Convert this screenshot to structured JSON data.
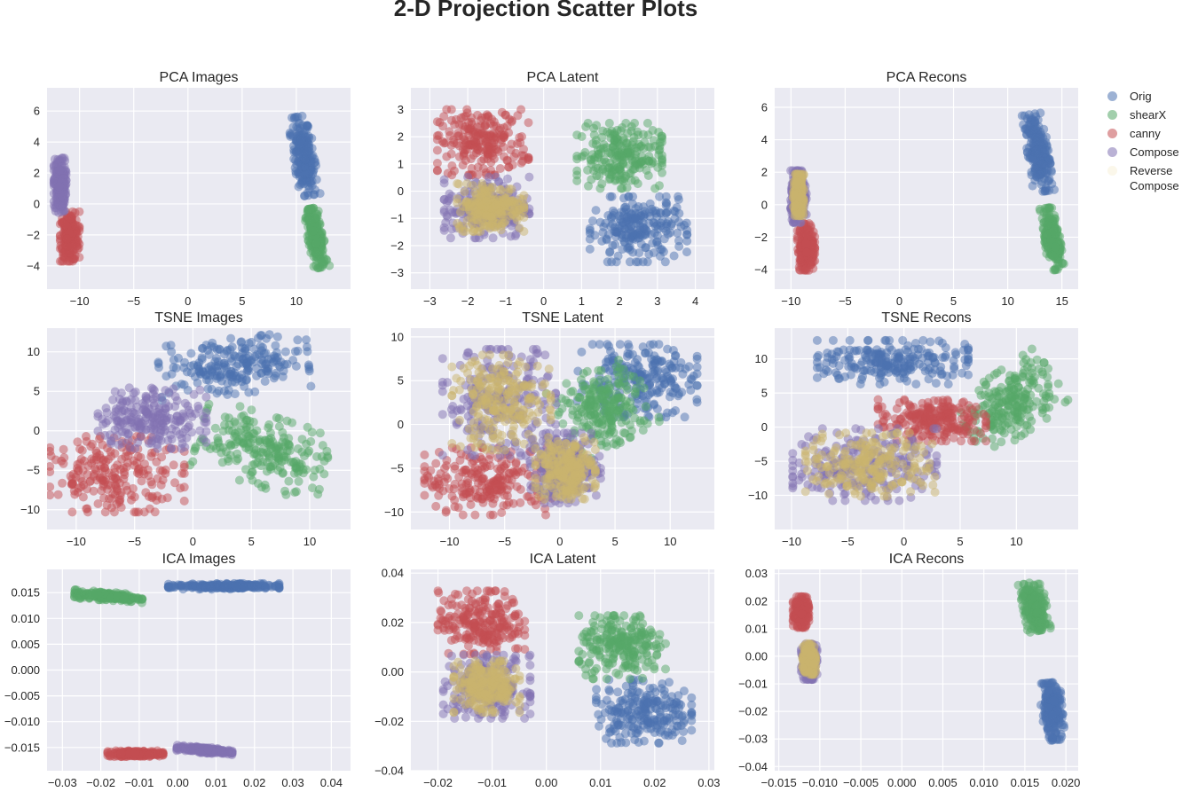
{
  "figure_title": "2-D Projection Scatter Plots",
  "legend": [
    {
      "label": "Orig",
      "color": "#4c72b0"
    },
    {
      "label": "shearX",
      "color": "#55a868"
    },
    {
      "label": "canny",
      "color": "#c44e52"
    },
    {
      "label": "Compose",
      "color": "#8172b2"
    },
    {
      "label": "Reverse\nCompose",
      "color": "#f7f1d8"
    }
  ],
  "chart_data": [
    {
      "type": "scatter",
      "title": "PCA Images",
      "xlim": [
        -13,
        15
      ],
      "ylim": [
        -5.5,
        7.5
      ],
      "xticks": [
        -10,
        -5,
        0,
        5,
        10
      ],
      "xticklabels": [
        "−10",
        "−5",
        "0",
        "5",
        "10"
      ],
      "yticks": [
        -4,
        -2,
        0,
        2,
        4,
        6
      ],
      "yticklabels": [
        "−4",
        "−2",
        "0",
        "2",
        "4",
        "6"
      ],
      "clusters": [
        {
          "series": "Orig",
          "center": [
            10.7,
            3.1
          ],
          "spread": [
            0.6,
            1.6
          ],
          "angle": -0.15
        },
        {
          "series": "shearX",
          "center": [
            11.8,
            -2.2
          ],
          "spread": [
            0.45,
            1.2
          ],
          "angle": -0.2
        },
        {
          "series": "canny",
          "center": [
            -10.9,
            -2.1
          ],
          "spread": [
            0.55,
            1.0
          ],
          "angle": 0
        },
        {
          "series": "Compose",
          "center": [
            -11.8,
            1.2
          ],
          "spread": [
            0.35,
            1.1
          ],
          "angle": 0
        }
      ]
    },
    {
      "type": "scatter",
      "title": "PCA Latent",
      "xlim": [
        -3.5,
        4.5
      ],
      "ylim": [
        -3.6,
        3.8
      ],
      "xticks": [
        -3,
        -2,
        -1,
        0,
        1,
        2,
        3,
        4
      ],
      "xticklabels": [
        "−3",
        "−2",
        "−1",
        "0",
        "1",
        "2",
        "3",
        "4"
      ],
      "yticks": [
        -3,
        -2,
        -1,
        0,
        1,
        2,
        3
      ],
      "yticklabels": [
        "−3",
        "−2",
        "−1",
        "0",
        "1",
        "2",
        "3"
      ],
      "clusters": [
        {
          "series": "canny",
          "center": [
            -1.6,
            1.8
          ],
          "spread": [
            0.75,
            0.75
          ],
          "angle": 0
        },
        {
          "series": "Orig",
          "center": [
            2.5,
            -1.4
          ],
          "spread": [
            0.8,
            0.75
          ],
          "angle": 0
        },
        {
          "series": "shearX",
          "center": [
            2.0,
            1.3
          ],
          "spread": [
            0.7,
            0.75
          ],
          "angle": 0
        },
        {
          "series": "Compose",
          "center": [
            -1.5,
            -0.6
          ],
          "spread": [
            0.7,
            0.7
          ],
          "angle": 0
        },
        {
          "series": "Reverse Compose",
          "center": [
            -1.4,
            -0.6
          ],
          "spread": [
            0.55,
            0.55
          ],
          "angle": 0
        }
      ]
    },
    {
      "type": "scatter",
      "title": "PCA Recons",
      "xlim": [
        -11.5,
        16.5
      ],
      "ylim": [
        -5.2,
        7.2
      ],
      "xticks": [
        -10,
        -5,
        0,
        5,
        10,
        15
      ],
      "xticklabels": [
        "−10",
        "−5",
        "0",
        "5",
        "10",
        "15"
      ],
      "yticks": [
        -4,
        -2,
        0,
        2,
        4,
        6
      ],
      "yticklabels": [
        "−4",
        "−2",
        "0",
        "2",
        "4",
        "6"
      ],
      "clusters": [
        {
          "series": "Orig",
          "center": [
            12.8,
            3.2
          ],
          "spread": [
            0.6,
            1.5
          ],
          "angle": -0.15
        },
        {
          "series": "shearX",
          "center": [
            14.1,
            -2.1
          ],
          "spread": [
            0.45,
            1.2
          ],
          "angle": -0.15
        },
        {
          "series": "canny",
          "center": [
            -8.6,
            -2.6
          ],
          "spread": [
            0.5,
            0.9
          ],
          "angle": 0
        },
        {
          "series": "Compose",
          "center": [
            -9.3,
            0.5
          ],
          "spread": [
            0.45,
            1.0
          ],
          "angle": 0
        },
        {
          "series": "Reverse Compose",
          "center": [
            -9.3,
            0.6
          ],
          "spread": [
            0.3,
            0.8
          ],
          "angle": 0
        }
      ]
    },
    {
      "type": "scatter",
      "title": "TSNE Images",
      "xlim": [
        -12.5,
        13.5
      ],
      "ylim": [
        -12.5,
        13
      ],
      "xticks": [
        -10,
        -5,
        0,
        5,
        10
      ],
      "xticklabels": [
        "−10",
        "−5",
        "0",
        "5",
        "10"
      ],
      "yticks": [
        -10,
        -5,
        0,
        5,
        10
      ],
      "yticklabels": [
        "−10",
        "−5",
        "0",
        "5",
        "10"
      ],
      "clusters": [
        {
          "series": "Orig",
          "center": [
            3.5,
            8.2
          ],
          "spread": [
            4.0,
            2.2
          ],
          "angle": -0.1
        },
        {
          "series": "shearX",
          "center": [
            6.0,
            -2.5
          ],
          "spread": [
            3.5,
            2.8
          ],
          "angle": 0.3
        },
        {
          "series": "canny",
          "center": [
            -6.5,
            -5.5
          ],
          "spread": [
            3.6,
            3.0
          ],
          "angle": 0
        },
        {
          "series": "Compose",
          "center": [
            -3.5,
            1.6
          ],
          "spread": [
            2.9,
            2.4
          ],
          "angle": 0
        }
      ]
    },
    {
      "type": "scatter",
      "title": "TSNE Latent",
      "xlim": [
        -13.5,
        14
      ],
      "ylim": [
        -12,
        11
      ],
      "xticks": [
        -10,
        -5,
        0,
        5,
        10
      ],
      "xticklabels": [
        "−10",
        "−5",
        "0",
        "5",
        "10"
      ],
      "yticks": [
        -10,
        -5,
        0,
        5,
        10
      ],
      "yticklabels": [
        "−10",
        "−5",
        "0",
        "5",
        "10"
      ],
      "clusters": [
        {
          "series": "Orig",
          "center": [
            7.0,
            5.0
          ],
          "spread": [
            3.4,
            2.6
          ],
          "angle": 0
        },
        {
          "series": "shearX",
          "center": [
            4.0,
            2.0
          ],
          "spread": [
            2.5,
            2.8
          ],
          "angle": -0.5
        },
        {
          "series": "canny",
          "center": [
            -6.5,
            -6.5
          ],
          "spread": [
            3.6,
            2.4
          ],
          "angle": 0
        },
        {
          "series": "Compose",
          "center": [
            -5.5,
            2.5
          ],
          "spread": [
            3.2,
            3.8
          ],
          "angle": 0
        },
        {
          "series": "Reverse Compose",
          "center": [
            -5.3,
            2.5
          ],
          "spread": [
            2.8,
            3.4
          ],
          "angle": 0
        },
        {
          "series": "Compose",
          "center": [
            0.5,
            -5.0
          ],
          "spread": [
            2.0,
            2.5
          ],
          "angle": 0
        },
        {
          "series": "Reverse Compose",
          "center": [
            0.5,
            -5.0
          ],
          "spread": [
            1.7,
            2.2
          ],
          "angle": 0
        }
      ]
    },
    {
      "type": "scatter",
      "title": "TSNE Recons",
      "xlim": [
        -11.5,
        15.5
      ],
      "ylim": [
        -15,
        14.5
      ],
      "xticks": [
        -10,
        -5,
        0,
        5,
        10
      ],
      "xticklabels": [
        "−10",
        "−5",
        "0",
        "5",
        "10"
      ],
      "yticks": [
        -10,
        -5,
        0,
        5,
        10
      ],
      "yticklabels": [
        "−10",
        "−5",
        "0",
        "5",
        "10"
      ],
      "clusters": [
        {
          "series": "Orig",
          "center": [
            -1.0,
            9.5
          ],
          "spread": [
            4.2,
            2.0
          ],
          "angle": 0
        },
        {
          "series": "shearX",
          "center": [
            9.5,
            3.5
          ],
          "spread": [
            2.8,
            3.0
          ],
          "angle": -0.6
        },
        {
          "series": "canny",
          "center": [
            2.5,
            1.0
          ],
          "spread": [
            3.0,
            1.9
          ],
          "angle": 0
        },
        {
          "series": "Compose",
          "center": [
            -3.5,
            -5.5
          ],
          "spread": [
            4.0,
            3.3
          ],
          "angle": 0
        },
        {
          "series": "Reverse Compose",
          "center": [
            -3.0,
            -5.5
          ],
          "spread": [
            3.6,
            2.9
          ],
          "angle": 0
        }
      ]
    },
    {
      "type": "scatter",
      "title": "ICA Images",
      "xlim": [
        -0.034,
        0.045
      ],
      "ylim": [
        -0.0195,
        0.0195
      ],
      "xticks": [
        -0.03,
        -0.02,
        -0.01,
        0,
        0.01,
        0.02,
        0.03,
        0.04
      ],
      "xticklabels": [
        "−0.03",
        "−0.02",
        "−0.01",
        "0.00",
        "0.01",
        "0.02",
        "0.03",
        "0.04"
      ],
      "yticks": [
        -0.015,
        -0.01,
        -0.005,
        0,
        0.005,
        0.01,
        0.015
      ],
      "yticklabels": [
        "−0.015",
        "−0.010",
        "−0.005",
        "0.000",
        "0.005",
        "0.010",
        "0.015"
      ],
      "clusters": [
        {
          "series": "Orig",
          "center": [
            0.012,
            0.0162
          ],
          "spread": [
            0.009,
            0.00035
          ],
          "angle": 0
        },
        {
          "series": "shearX",
          "center": [
            -0.018,
            0.0143
          ],
          "spread": [
            0.0055,
            0.0005
          ],
          "angle": 0.07
        },
        {
          "series": "canny",
          "center": [
            -0.011,
            -0.0162
          ],
          "spread": [
            0.0045,
            0.00035
          ],
          "angle": 0
        },
        {
          "series": "Compose",
          "center": [
            0.007,
            -0.0155
          ],
          "spread": [
            0.0045,
            0.00035
          ],
          "angle": 0.07
        }
      ]
    },
    {
      "type": "scatter",
      "title": "ICA Latent",
      "xlim": [
        -0.025,
        0.031
      ],
      "ylim": [
        -0.04,
        0.0415
      ],
      "xticks": [
        -0.02,
        -0.01,
        0,
        0.01,
        0.02,
        0.03
      ],
      "xticklabels": [
        "−0.02",
        "−0.01",
        "0.00",
        "0.01",
        "0.02",
        "0.03"
      ],
      "yticks": [
        -0.04,
        -0.02,
        0,
        0.02,
        0.04
      ],
      "yticklabels": [
        "−0.04",
        "−0.02",
        "0.00",
        "0.02",
        "0.04"
      ],
      "clusters": [
        {
          "series": "canny",
          "center": [
            -0.012,
            0.02
          ],
          "spread": [
            0.005,
            0.008
          ],
          "angle": 0
        },
        {
          "series": "Orig",
          "center": [
            0.018,
            -0.016
          ],
          "spread": [
            0.0055,
            0.008
          ],
          "angle": 0
        },
        {
          "series": "shearX",
          "center": [
            0.014,
            0.01
          ],
          "spread": [
            0.005,
            0.008
          ],
          "angle": 0
        },
        {
          "series": "Compose",
          "center": [
            -0.011,
            -0.006
          ],
          "spread": [
            0.005,
            0.008
          ],
          "angle": 0
        },
        {
          "series": "Reverse Compose",
          "center": [
            -0.011,
            -0.006
          ],
          "spread": [
            0.0038,
            0.0065
          ],
          "angle": 0
        }
      ]
    },
    {
      "type": "scatter",
      "title": "ICA Recons",
      "xlim": [
        -0.0155,
        0.0215
      ],
      "ylim": [
        -0.0415,
        0.0315
      ],
      "xticks": [
        -0.015,
        -0.01,
        -0.005,
        0,
        0.005,
        0.01,
        0.015,
        0.02
      ],
      "xticklabels": [
        "−0.015",
        "−0.010",
        "−0.005",
        "0.000",
        "0.005",
        "0.010",
        "0.015",
        "0.020"
      ],
      "yticks": [
        -0.04,
        -0.03,
        -0.02,
        -0.01,
        0,
        0.01,
        0.02,
        0.03
      ],
      "yticklabels": [
        "−0.04",
        "−0.03",
        "−0.02",
        "−0.01",
        "0.00",
        "0.01",
        "0.02",
        "0.03"
      ],
      "clusters": [
        {
          "series": "canny",
          "center": [
            -0.0123,
            0.016
          ],
          "spread": [
            0.0006,
            0.0035
          ],
          "angle": 0
        },
        {
          "series": "Compose",
          "center": [
            -0.0113,
            -0.002
          ],
          "spread": [
            0.0006,
            0.004
          ],
          "angle": 0
        },
        {
          "series": "Reverse Compose",
          "center": [
            -0.0113,
            -0.001
          ],
          "spread": [
            0.0005,
            0.0035
          ],
          "angle": 0
        },
        {
          "series": "Orig",
          "center": [
            0.0183,
            -0.02
          ],
          "spread": [
            0.0008,
            0.0065
          ],
          "angle": -0.1
        },
        {
          "series": "shearX",
          "center": [
            0.0162,
            0.018
          ],
          "spread": [
            0.0009,
            0.0055
          ],
          "angle": -0.2
        }
      ]
    }
  ]
}
